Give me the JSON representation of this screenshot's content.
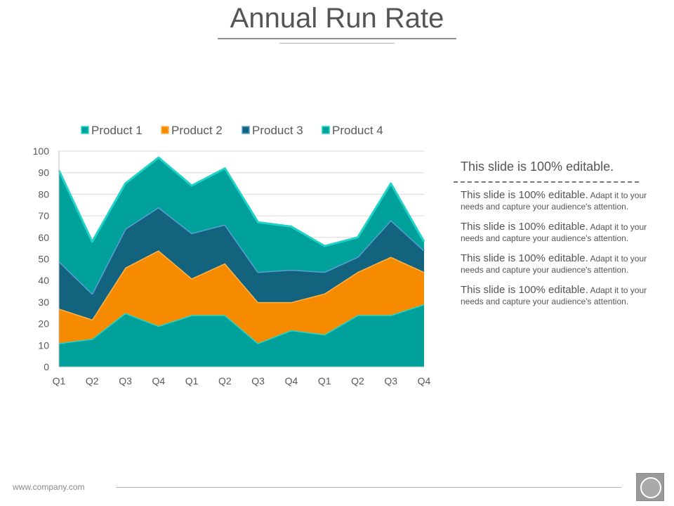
{
  "slide": {
    "title": "Annual Run Rate",
    "footer_url": "www.company.com"
  },
  "side_text": {
    "heading": "This slide is 100% editable.",
    "items": [
      {
        "lead": "This slide is 100% editable.",
        "body": " Adapt it to your needs and capture your audience's attention."
      },
      {
        "lead": "This slide is 100% editable.",
        "body": " Adapt it to your needs and capture your audience's attention."
      },
      {
        "lead": "This slide is 100% editable.",
        "body": " Adapt it to your needs and capture your audience's attention."
      },
      {
        "lead": "This slide is 100% editable.",
        "body": " Adapt it to your needs and capture your audience's attention."
      }
    ]
  },
  "chart_data": {
    "type": "area",
    "stacked": true,
    "title": "",
    "xlabel": "",
    "ylabel": "",
    "ylim": [
      0,
      100
    ],
    "yticks": [
      0,
      10,
      20,
      30,
      40,
      50,
      60,
      70,
      80,
      90,
      100
    ],
    "grid": true,
    "legend_position": "top",
    "categories": [
      "Q1",
      "Q2",
      "Q3",
      "Q4",
      "Q1",
      "Q2",
      "Q3",
      "Q4",
      "Q1",
      "Q2",
      "Q3",
      "Q4"
    ],
    "series": [
      {
        "name": "Product 1",
        "color": "#00a19a",
        "values": [
          11,
          13,
          25,
          19,
          24,
          24,
          11,
          17,
          15,
          24,
          24,
          29
        ]
      },
      {
        "name": "Product 2",
        "color": "#f68a00",
        "values": [
          16,
          9,
          21,
          35,
          17,
          24,
          19,
          13,
          19,
          20,
          27,
          15
        ]
      },
      {
        "name": "Product 3",
        "color": "#13627e",
        "values": [
          22,
          12,
          18,
          20,
          21,
          18,
          14,
          15,
          10,
          7,
          17,
          10
        ]
      },
      {
        "name": "Product 4",
        "color": "#00a19a",
        "values": [
          42,
          24,
          21,
          23,
          22,
          26,
          23,
          20,
          12,
          9,
          17,
          4
        ]
      }
    ]
  }
}
